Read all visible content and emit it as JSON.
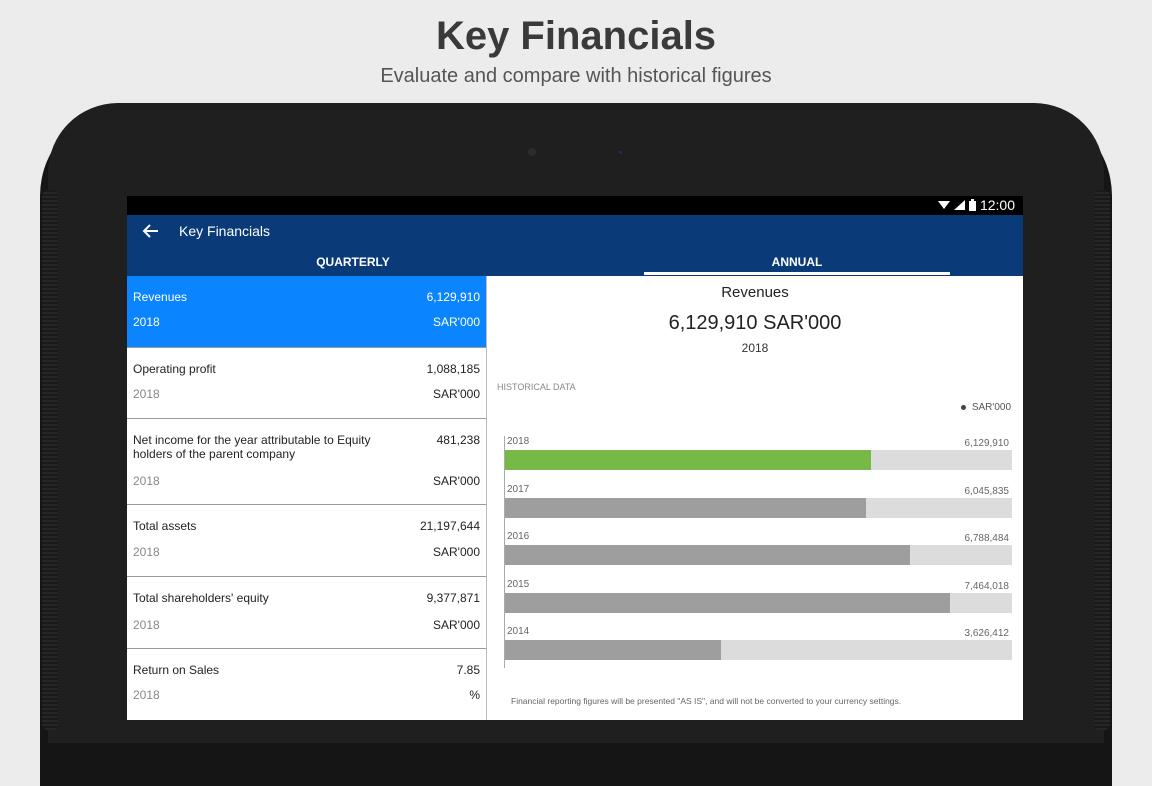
{
  "hero": {
    "title": "Key Financials",
    "subtitle": "Evaluate and compare with historical figures"
  },
  "status_bar": {
    "time": "12:00"
  },
  "app_bar": {
    "title": "Key Financials"
  },
  "tabs": [
    {
      "label": "QUARTERLY",
      "active": false
    },
    {
      "label": "ANNUAL",
      "active": true
    }
  ],
  "financials": [
    {
      "label": "Revenues",
      "value": "6,129,910",
      "year": "2018",
      "unit": "SAR'000",
      "selected": true
    },
    {
      "label": "Operating profit",
      "value": "1,088,185",
      "year": "2018",
      "unit": "SAR'000"
    },
    {
      "label": "Net income for the year attributable to Equity holders of the parent company",
      "value": "481,238",
      "year": "2018",
      "unit": "SAR'000"
    },
    {
      "label": "Total assets",
      "value": "21,197,644",
      "year": "2018",
      "unit": "SAR'000"
    },
    {
      "label": "Total shareholders' equity",
      "value": "9,377,871",
      "year": "2018",
      "unit": "SAR'000"
    },
    {
      "label": "Return on Sales",
      "value": "7.85",
      "year": "2018",
      "unit": "%"
    }
  ],
  "detail": {
    "title": "Revenues",
    "value": "6,129,910 SAR'000",
    "year": "2018",
    "historical_label": "HISTORICAL DATA",
    "legend": "SAR'000",
    "footnote": "Financial reporting figures will be presented \"AS IS\", and will not be converted to your currency settings."
  },
  "colors": {
    "highlight_bar": "#76b947",
    "normal_bar": "#9e9e9e"
  },
  "chart_data": {
    "type": "bar",
    "orientation": "horizontal",
    "categories": [
      "2018",
      "2017",
      "2016",
      "2015",
      "2014"
    ],
    "values": [
      6129910,
      6045835,
      6788484,
      7464018,
      3626412
    ],
    "value_labels": [
      "6,129,910",
      "6,045,835",
      "6,788,484",
      "7,464,018",
      "3,626,412"
    ],
    "xlim": [
      0,
      8500000
    ],
    "highlight_index": 0,
    "legend": [
      "SAR'000"
    ]
  }
}
